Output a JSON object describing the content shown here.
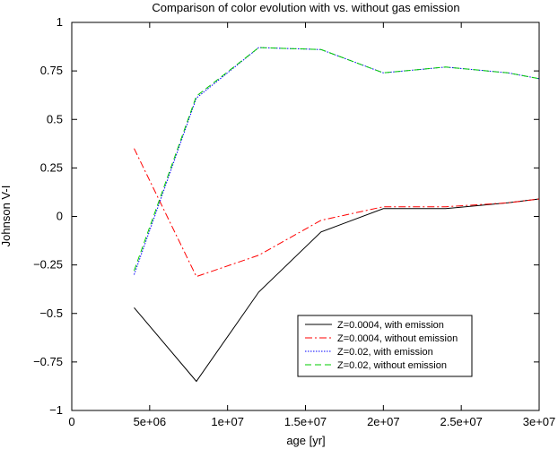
{
  "chart_data": {
    "type": "line",
    "title": "Comparison of color evolution with vs. without gas emission",
    "xlabel": "age [yr]",
    "ylabel": "Johnson V-I",
    "xlim": [
      0,
      30000000
    ],
    "ylim": [
      -1,
      1
    ],
    "x_ticks": [
      {
        "value": 0,
        "label": "0"
      },
      {
        "value": 5000000,
        "label": "5e+06"
      },
      {
        "value": 10000000,
        "label": "1e+07"
      },
      {
        "value": 15000000,
        "label": "1.5e+07"
      },
      {
        "value": 20000000,
        "label": "2e+07"
      },
      {
        "value": 25000000,
        "label": "2.5e+07"
      },
      {
        "value": 30000000,
        "label": "3e+07"
      }
    ],
    "y_ticks": [
      {
        "value": 1,
        "label": "1"
      },
      {
        "value": 0.75,
        "label": "0.75"
      },
      {
        "value": 0.5,
        "label": "0.5"
      },
      {
        "value": 0.25,
        "label": "0.25"
      },
      {
        "value": 0,
        "label": "0"
      },
      {
        "value": -0.25,
        "label": "−0.25"
      },
      {
        "value": -0.5,
        "label": "−0.5"
      },
      {
        "value": -0.75,
        "label": "−0.75"
      },
      {
        "value": -1,
        "label": "−1"
      }
    ],
    "grid": false,
    "legend_position": "bottom-right",
    "series": [
      {
        "name": "Z=0.0004, with emission",
        "color": "#000000",
        "dash": "solid",
        "x": [
          4000000,
          8000000,
          12000000,
          16000000,
          20000000,
          24000000,
          28000000,
          30000000
        ],
        "y": [
          -0.47,
          -0.85,
          -0.39,
          -0.08,
          0.04,
          0.04,
          0.07,
          0.09
        ]
      },
      {
        "name": "Z=0.0004, without emission",
        "color": "#ff0000",
        "dash": "dashdot",
        "x": [
          4000000,
          8000000,
          12000000,
          16000000,
          20000000,
          24000000,
          28000000,
          30000000
        ],
        "y": [
          0.35,
          -0.31,
          -0.2,
          -0.02,
          0.05,
          0.05,
          0.07,
          0.09
        ]
      },
      {
        "name": "Z=0.02, with emission",
        "color": "#0000ff",
        "dash": "dotted",
        "x": [
          4000000,
          8000000,
          12000000,
          16000000,
          20000000,
          24000000,
          28000000,
          30000000
        ],
        "y": [
          -0.3,
          0.61,
          0.87,
          0.86,
          0.74,
          0.77,
          0.74,
          0.71
        ]
      },
      {
        "name": "Z=0.02, without emission",
        "color": "#00cc00",
        "dash": "dashed",
        "x": [
          4000000,
          8000000,
          12000000,
          16000000,
          20000000,
          24000000,
          28000000,
          30000000
        ],
        "y": [
          -0.28,
          0.62,
          0.87,
          0.86,
          0.74,
          0.77,
          0.74,
          0.71
        ]
      }
    ]
  }
}
